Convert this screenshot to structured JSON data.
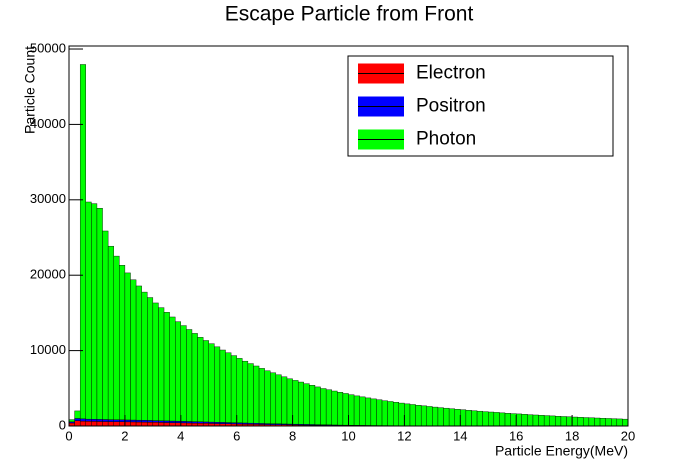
{
  "chart_data": {
    "type": "histogram",
    "stacked": true,
    "title": "Escape Particle from Front",
    "x_label": "Particle Energy(MeV)",
    "y_label": "Particle Count",
    "legend_position": "top right",
    "grid": false,
    "xlim": [
      0,
      20
    ],
    "xticks": [
      0,
      2,
      4,
      6,
      8,
      10,
      12,
      14,
      16,
      18,
      20
    ],
    "ylim": [
      0,
      50400
    ],
    "yticks": [
      0,
      10000,
      20000,
      30000,
      40000,
      50000
    ],
    "bins": [
      0,
      0.2,
      0.4,
      0.6,
      0.8,
      1,
      1.2,
      1.4,
      1.6,
      1.8,
      2,
      2.2,
      2.4,
      2.6,
      2.8,
      3,
      3.2,
      3.4,
      3.6,
      3.8,
      4,
      4.2,
      4.4,
      4.6,
      4.8,
      5,
      5.2,
      5.4,
      5.6,
      5.8,
      6,
      6.2,
      6.4,
      6.6,
      6.8,
      7,
      7.2,
      7.4,
      7.6,
      7.8,
      8,
      8.2,
      8.4,
      8.6,
      8.8,
      9,
      9.2,
      9.4,
      9.6,
      9.8,
      10,
      10.2,
      10.4,
      10.6,
      10.8,
      11,
      11.2,
      11.4,
      11.6,
      11.8,
      12,
      12.2,
      12.4,
      12.6,
      12.8,
      13,
      13.2,
      13.4,
      13.6,
      13.8,
      14,
      14.2,
      14.4,
      14.6,
      14.8,
      15,
      15.2,
      15.4,
      15.6,
      15.8,
      16,
      16.2,
      16.4,
      16.6,
      16.8,
      17,
      17.2,
      17.4,
      17.6,
      17.8,
      18,
      18.2,
      18.4,
      18.6,
      18.8,
      19,
      19.2,
      19.4,
      19.6,
      19.8,
      20
    ],
    "series": [
      {
        "name": "Electron",
        "color": "#ff0000",
        "values": [
          400,
          700,
          650,
          620,
          610,
          600,
          590,
          580,
          570,
          560,
          550,
          540,
          530,
          520,
          505,
          490,
          475,
          460,
          445,
          430,
          415,
          400,
          385,
          370,
          355,
          340,
          325,
          310,
          295,
          280,
          265,
          250,
          235,
          220,
          205,
          190,
          180,
          170,
          160,
          150,
          140,
          130,
          120,
          110,
          100,
          90,
          80,
          70,
          60,
          55,
          50,
          45,
          40,
          35,
          30,
          28,
          26,
          24,
          22,
          20,
          18,
          16,
          14,
          12,
          11,
          10,
          9,
          8,
          7,
          6,
          5,
          5,
          4,
          4,
          3,
          3,
          3,
          2,
          2,
          2,
          2,
          1,
          1,
          1,
          1,
          1,
          1,
          0,
          0,
          0,
          0,
          0,
          0,
          0,
          0,
          0,
          0,
          0,
          0,
          0
        ]
      },
      {
        "name": "Positron",
        "color": "#0000ff",
        "values": [
          150,
          300,
          300,
          290,
          285,
          280,
          275,
          270,
          265,
          260,
          255,
          250,
          245,
          240,
          235,
          230,
          225,
          220,
          215,
          210,
          205,
          200,
          195,
          190,
          185,
          180,
          175,
          170,
          165,
          160,
          155,
          150,
          145,
          140,
          135,
          130,
          125,
          120,
          115,
          110,
          105,
          100,
          95,
          90,
          85,
          80,
          75,
          70,
          65,
          60,
          55,
          50,
          46,
          42,
          38,
          34,
          30,
          27,
          24,
          21,
          18,
          16,
          14,
          12,
          10,
          9,
          8,
          7,
          6,
          5,
          4,
          4,
          3,
          3,
          3,
          2,
          2,
          2,
          2,
          1,
          1,
          1,
          1,
          1,
          1,
          0,
          0,
          0,
          0,
          0,
          0,
          0,
          0,
          0,
          0,
          0,
          0,
          0,
          0,
          0
        ]
      },
      {
        "name": "Photon",
        "color": "#00ff00",
        "values": [
          300,
          1000,
          47000,
          28800,
          28600,
          28000,
          25000,
          23000,
          21700,
          20500,
          19500,
          18600,
          17800,
          17000,
          16300,
          15600,
          15000,
          14400,
          13800,
          13200,
          12700,
          12200,
          11700,
          11200,
          10800,
          10400,
          10000,
          9600,
          9250,
          8900,
          8550,
          8200,
          7900,
          7600,
          7300,
          7000,
          6750,
          6500,
          6250,
          6000,
          5800,
          5600,
          5400,
          5200,
          5000,
          4800,
          4650,
          4500,
          4350,
          4200,
          4050,
          3900,
          3780,
          3650,
          3530,
          3420,
          3300,
          3200,
          3100,
          3000,
          2900,
          2820,
          2730,
          2650,
          2570,
          2490,
          2420,
          2350,
          2280,
          2210,
          2150,
          2080,
          2020,
          1960,
          1900,
          1850,
          1800,
          1740,
          1690,
          1640,
          1600,
          1550,
          1500,
          1460,
          1420,
          1380,
          1340,
          1300,
          1260,
          1230,
          1190,
          1160,
          1120,
          1090,
          1060,
          1030,
          1000,
          970,
          940,
          910
        ]
      }
    ]
  }
}
